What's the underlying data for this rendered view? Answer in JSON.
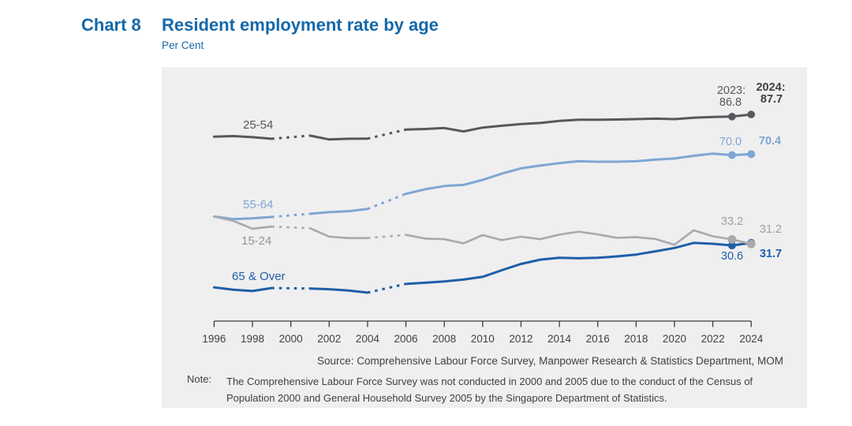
{
  "header": {
    "chart_label": "Chart 8",
    "title": "Resident employment rate by age",
    "subtitle": "Per Cent"
  },
  "chart_data": {
    "type": "line",
    "title": "Resident employment rate by age",
    "ylabel": "Per Cent",
    "x": [
      1996,
      1997,
      1998,
      1999,
      2000,
      2001,
      2002,
      2003,
      2004,
      2005,
      2006,
      2007,
      2008,
      2009,
      2010,
      2011,
      2012,
      2013,
      2014,
      2015,
      2016,
      2017,
      2018,
      2019,
      2020,
      2021,
      2022,
      2023,
      2024
    ],
    "x_tick_labels": [
      "1996",
      "1998",
      "2000",
      "2002",
      "2004",
      "2006",
      "2008",
      "2010",
      "2012",
      "2014",
      "2016",
      "2018",
      "2020",
      "2022",
      "2024"
    ],
    "missing_years": [
      2000,
      2005
    ],
    "dashed_gaps": [
      [
        1999,
        2001
      ],
      [
        2004,
        2006
      ]
    ],
    "legend_position": "inline-labels",
    "grid": false,
    "ylim_visible": [
      0,
      100
    ],
    "series": [
      {
        "name": "25-54",
        "color": "#57585B",
        "values": [
          78.0,
          78.3,
          77.8,
          77.1,
          null,
          78.5,
          76.8,
          77.1,
          77.2,
          null,
          81.1,
          81.4,
          81.8,
          80.3,
          82.0,
          82.8,
          83.5,
          84.0,
          84.9,
          85.4,
          85.4,
          85.5,
          85.7,
          85.9,
          85.7,
          86.3,
          86.6,
          86.8,
          87.7
        ]
      },
      {
        "name": "55-64",
        "color": "#7EA6D3",
        "values": [
          43.2,
          42.1,
          42.4,
          43.0,
          null,
          44.4,
          45.1,
          45.5,
          46.5,
          null,
          53.1,
          55.1,
          56.5,
          57.0,
          59.2,
          61.9,
          64.2,
          65.4,
          66.5,
          67.3,
          67.1,
          67.1,
          67.3,
          68.0,
          68.5,
          69.7,
          70.6,
          70.0,
          70.4
        ]
      },
      {
        "name": "15-24",
        "color": "#A7A9AC",
        "values": [
          43.2,
          41.3,
          37.9,
          38.8,
          null,
          38.1,
          34.4,
          33.8,
          33.8,
          null,
          35.2,
          33.6,
          33.3,
          31.5,
          35.1,
          32.9,
          34.4,
          33.3,
          35.3,
          36.6,
          35.4,
          33.9,
          34.2,
          33.4,
          30.9,
          37.2,
          34.6,
          33.2,
          31.2
        ]
      },
      {
        "name": "65 & Over",
        "color": "#1F5FA7",
        "values": [
          12.3,
          11.3,
          10.7,
          12.0,
          null,
          11.8,
          11.5,
          10.9,
          10.0,
          null,
          13.8,
          14.3,
          14.9,
          15.7,
          16.9,
          19.8,
          22.5,
          24.4,
          25.2,
          25.0,
          25.2,
          25.8,
          26.6,
          28.0,
          29.5,
          31.7,
          31.3,
          30.6,
          31.7
        ]
      }
    ]
  },
  "annotations": {
    "prefix_2023": "2023:",
    "prefix_2024": "2024:",
    "v2023_25_54": "86.8",
    "v2024_25_54": "87.7",
    "v2023_55_64": "70.0",
    "v2024_55_64": "70.4",
    "v2023_15_24": "33.2",
    "v2024_15_24": "31.2",
    "v2023_65over": "30.6",
    "v2024_65over": "31.7"
  },
  "footer": {
    "source": "Source: Comprehensive Labour Force Survey, Manpower Research & Statistics Department, MOM",
    "note_label": "Note:",
    "note": "The Comprehensive Labour Force Survey was not conducted in 2000 and 2005 due to the conduct of the Census of Population 2000 and General Household Survey 2005 by the Singapore Department of Statistics."
  }
}
